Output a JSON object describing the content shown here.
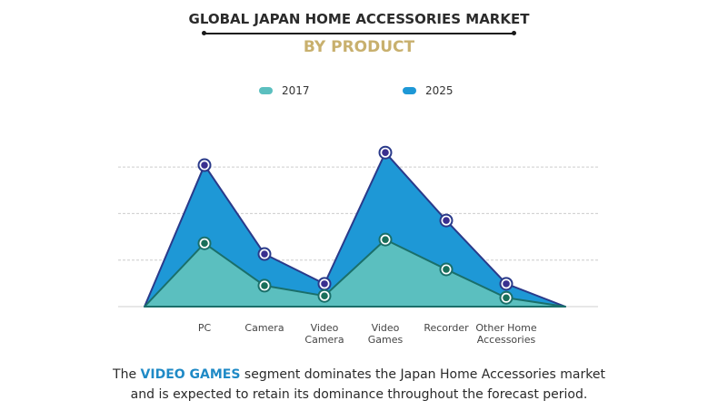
{
  "header": {
    "title": "GLOBAL JAPAN HOME ACCESSORIES MARKET",
    "subtitle": "BY PRODUCT"
  },
  "legend": [
    {
      "label": "2017",
      "color": "#5bbfbf"
    },
    {
      "label": "2025",
      "color": "#1e98d6"
    }
  ],
  "caption": {
    "prefix": "The ",
    "highlight": "VIDEO GAMES",
    "line1_rest": " segment dominates the Japan Home Accessories market",
    "line2": "and is expected to retain its dominance throughout the forecast period."
  },
  "colors": {
    "area_2017": "#5bbfbf",
    "line_2017": "#1a6f6a",
    "area_2025": "#1e98d6",
    "line_2025": "#2a3a8a",
    "marker_2017": "#1a6f5a",
    "marker_2025": "#3a2f8f",
    "title_gold": "#c8b06e",
    "highlight": "#1f8ac6",
    "grid": "#cccccc"
  },
  "chart_data": {
    "type": "area",
    "title": "GLOBAL JAPAN HOME ACCESSORIES MARKET",
    "subtitle": "BY PRODUCT",
    "categories": [
      "PC",
      "Camera",
      "Video Camera",
      "Video Games",
      "Recorder",
      "Other Home Accessories"
    ],
    "category_labels": [
      [
        "PC"
      ],
      [
        "Camera"
      ],
      [
        "Video",
        "Camera"
      ],
      [
        "Video",
        "Games"
      ],
      [
        "Recorder"
      ],
      [
        "Other Home",
        "Accessories"
      ]
    ],
    "series": [
      {
        "name": "2017",
        "values": [
          1.36,
          0.45,
          0.23,
          1.44,
          0.8,
          0.19
        ]
      },
      {
        "name": "2025",
        "values": [
          3.04,
          1.13,
          0.49,
          3.31,
          1.85,
          0.49
        ]
      }
    ],
    "xlabel": "",
    "ylabel": "",
    "ylim": [
      0,
      3.5
    ],
    "y_ticks_visible": false,
    "grid": true,
    "gridlines_at": [
      1,
      2,
      3
    ],
    "legend_position": "top",
    "value_units": "relative (no axis labels shown)"
  }
}
